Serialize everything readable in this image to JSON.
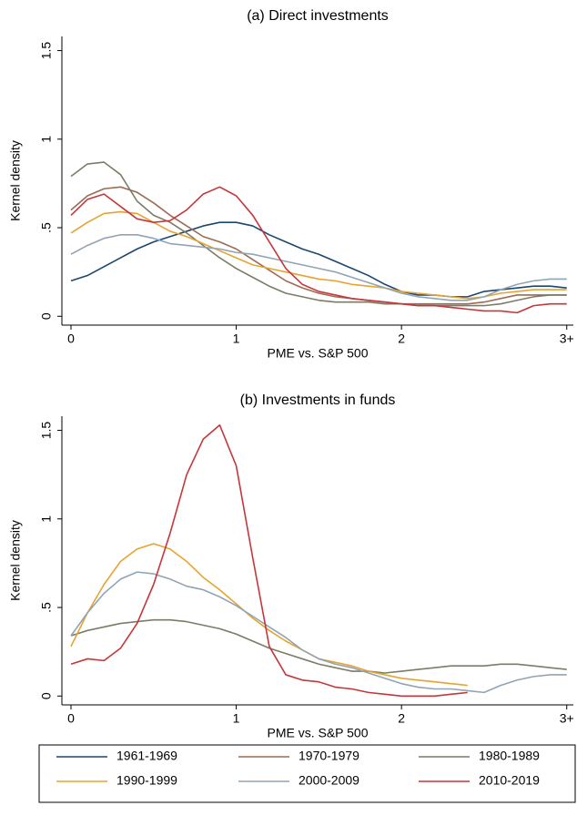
{
  "chart_data": [
    {
      "type": "line",
      "title": "(a) Direct investments",
      "x_label": "PME vs. S&P 500",
      "y_label": "Kernel density",
      "xlim": [
        -0.055,
        3.04
      ],
      "ylim": [
        -0.05,
        1.58
      ],
      "xticks": [
        0,
        1,
        2,
        {
          "value": 3,
          "label": "3+"
        }
      ],
      "yticks": [
        0,
        {
          "value": 0.5,
          "label": ".5"
        },
        1,
        1.5
      ],
      "x": [
        0,
        0.1,
        0.2,
        0.3,
        0.4,
        0.5,
        0.6,
        0.7,
        0.8,
        0.9,
        1,
        1.1,
        1.2,
        1.3,
        1.4,
        1.5,
        1.6,
        1.7,
        1.8,
        1.9,
        2,
        2.1,
        2.2,
        2.3,
        2.4,
        2.5,
        2.6,
        2.7,
        2.8,
        2.9,
        3
      ],
      "series": [
        {
          "name": "1961-1969",
          "color": "#1a476f",
          "values": [
            0.2,
            0.23,
            0.28,
            0.33,
            0.38,
            0.42,
            0.45,
            0.48,
            0.51,
            0.53,
            0.53,
            0.51,
            0.46,
            0.42,
            0.38,
            0.35,
            0.31,
            0.27,
            0.23,
            0.18,
            0.14,
            0.12,
            0.12,
            0.11,
            0.11,
            0.14,
            0.15,
            0.16,
            0.17,
            0.17,
            0.16
          ]
        },
        {
          "name": "1970-1979",
          "color": "#9c6b55",
          "values": [
            0.6,
            0.68,
            0.72,
            0.73,
            0.7,
            0.64,
            0.57,
            0.51,
            0.45,
            0.42,
            0.38,
            0.32,
            0.26,
            0.2,
            0.16,
            0.13,
            0.11,
            0.1,
            0.09,
            0.08,
            0.07,
            0.07,
            0.07,
            0.07,
            0.07,
            0.08,
            0.1,
            0.12,
            0.12,
            0.12,
            0.12
          ]
        },
        {
          "name": "1980-1989",
          "color": "#7b7c66",
          "values": [
            0.79,
            0.86,
            0.87,
            0.8,
            0.65,
            0.57,
            0.53,
            0.47,
            0.4,
            0.33,
            0.27,
            0.22,
            0.17,
            0.13,
            0.11,
            0.09,
            0.08,
            0.08,
            0.08,
            0.07,
            0.07,
            0.06,
            0.06,
            0.06,
            0.06,
            0.06,
            0.07,
            0.09,
            0.11,
            0.12,
            0.12
          ]
        },
        {
          "name": "1990-1999",
          "color": "#e8a32e",
          "values": [
            0.47,
            0.53,
            0.58,
            0.59,
            0.58,
            0.53,
            0.48,
            0.45,
            0.41,
            0.37,
            0.33,
            0.29,
            0.27,
            0.25,
            0.23,
            0.21,
            0.2,
            0.18,
            0.17,
            0.16,
            0.14,
            0.13,
            0.12,
            0.11,
            0.1,
            0.11,
            0.13,
            0.14,
            0.15,
            0.15,
            0.15
          ]
        },
        {
          "name": "2000-2009",
          "color": "#90a4b5",
          "values": [
            0.35,
            0.4,
            0.44,
            0.46,
            0.46,
            0.44,
            0.41,
            0.4,
            0.39,
            0.38,
            0.36,
            0.35,
            0.33,
            0.31,
            0.29,
            0.27,
            0.25,
            0.22,
            0.19,
            0.16,
            0.13,
            0.11,
            0.1,
            0.09,
            0.09,
            0.11,
            0.15,
            0.18,
            0.2,
            0.21,
            0.21
          ]
        },
        {
          "name": "2010-2019",
          "color": "#c4373a",
          "values": [
            0.57,
            0.66,
            0.69,
            0.62,
            0.55,
            0.53,
            0.54,
            0.6,
            0.69,
            0.73,
            0.68,
            0.57,
            0.42,
            0.27,
            0.18,
            0.14,
            0.12,
            0.1,
            0.09,
            0.08,
            0.07,
            0.06,
            0.06,
            0.05,
            0.04,
            0.03,
            0.03,
            0.02,
            0.06,
            0.07,
            0.07
          ]
        }
      ]
    },
    {
      "type": "line",
      "title": "(b) Investments in funds",
      "x_label": "PME vs. S&P 500",
      "y_label": "Kernel density",
      "xlim": [
        -0.055,
        3.04
      ],
      "ylim": [
        -0.05,
        1.58
      ],
      "xticks": [
        0,
        1,
        2,
        {
          "value": 3,
          "label": "3+"
        }
      ],
      "yticks": [
        0,
        {
          "value": 0.5,
          "label": ".5"
        },
        1,
        1.5
      ],
      "x": [
        0,
        0.1,
        0.2,
        0.3,
        0.4,
        0.5,
        0.6,
        0.7,
        0.8,
        0.9,
        1,
        1.1,
        1.2,
        1.3,
        1.4,
        1.5,
        1.6,
        1.7,
        1.8,
        1.9,
        2,
        2.1,
        2.2,
        2.3,
        2.4,
        2.5,
        2.6,
        2.7,
        2.8,
        2.9,
        3
      ],
      "series": [
        {
          "color": "#7b7c66",
          "values": [
            0.34,
            0.37,
            0.39,
            0.41,
            0.42,
            0.43,
            0.43,
            0.42,
            0.4,
            0.38,
            0.35,
            0.31,
            0.27,
            0.24,
            0.21,
            0.18,
            0.16,
            0.14,
            0.14,
            0.13,
            0.14,
            0.15,
            0.16,
            0.17,
            0.17,
            0.17,
            0.18,
            0.18,
            0.17,
            0.16,
            0.15
          ]
        },
        {
          "color": "#e8a32e",
          "values": [
            0.28,
            0.47,
            0.63,
            0.76,
            0.83,
            0.86,
            0.83,
            0.76,
            0.67,
            0.6,
            0.52,
            0.44,
            0.37,
            0.31,
            0.26,
            0.21,
            0.19,
            0.17,
            0.14,
            0.12,
            0.1,
            0.09,
            0.08,
            0.07,
            0.06,
            null,
            null,
            null,
            null,
            null,
            null
          ]
        },
        {
          "color": "#90a4b5",
          "values": [
            0.34,
            0.47,
            0.58,
            0.66,
            0.7,
            0.69,
            0.66,
            0.62,
            0.6,
            0.56,
            0.51,
            0.45,
            0.39,
            0.33,
            0.26,
            0.21,
            0.18,
            0.16,
            0.13,
            0.1,
            0.07,
            0.05,
            0.04,
            0.04,
            0.03,
            0.02,
            0.06,
            0.09,
            0.11,
            0.12,
            0.12
          ]
        },
        {
          "color": "#c4373a",
          "values": [
            0.18,
            0.21,
            0.2,
            0.27,
            0.41,
            0.63,
            0.92,
            1.25,
            1.45,
            1.53,
            1.3,
            0.78,
            0.28,
            0.12,
            0.09,
            0.08,
            0.05,
            0.04,
            0.02,
            0.01,
            0.0,
            0.0,
            0.0,
            0.01,
            0.02,
            null,
            null,
            null,
            null,
            null,
            null
          ]
        }
      ]
    }
  ]
}
